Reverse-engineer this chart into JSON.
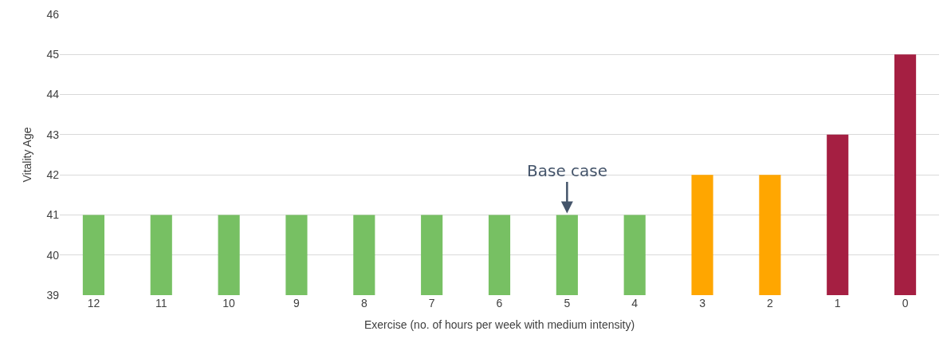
{
  "chart_data": {
    "type": "bar",
    "xlabel": "Exercise (no. of hours per week with medium intensity)",
    "ylabel": "Vitality Age",
    "categories": [
      "12",
      "11",
      "10",
      "9",
      "8",
      "7",
      "6",
      "5",
      "4",
      "3",
      "2",
      "1",
      "0"
    ],
    "values": [
      41,
      41,
      41,
      41,
      41,
      41,
      41,
      41,
      41,
      42,
      42,
      43,
      45
    ],
    "colors": [
      "#77c063",
      "#77c063",
      "#77c063",
      "#77c063",
      "#77c063",
      "#77c063",
      "#77c063",
      "#77c063",
      "#77c063",
      "#ffa600",
      "#ffa600",
      "#a51f42",
      "#a51f42"
    ],
    "ylim": [
      39,
      46
    ],
    "yticks": [
      39,
      40,
      41,
      42,
      43,
      44,
      45,
      46
    ],
    "grid": "y",
    "annotations": [
      {
        "text": "Base case",
        "x": "5",
        "y": 41
      }
    ]
  }
}
